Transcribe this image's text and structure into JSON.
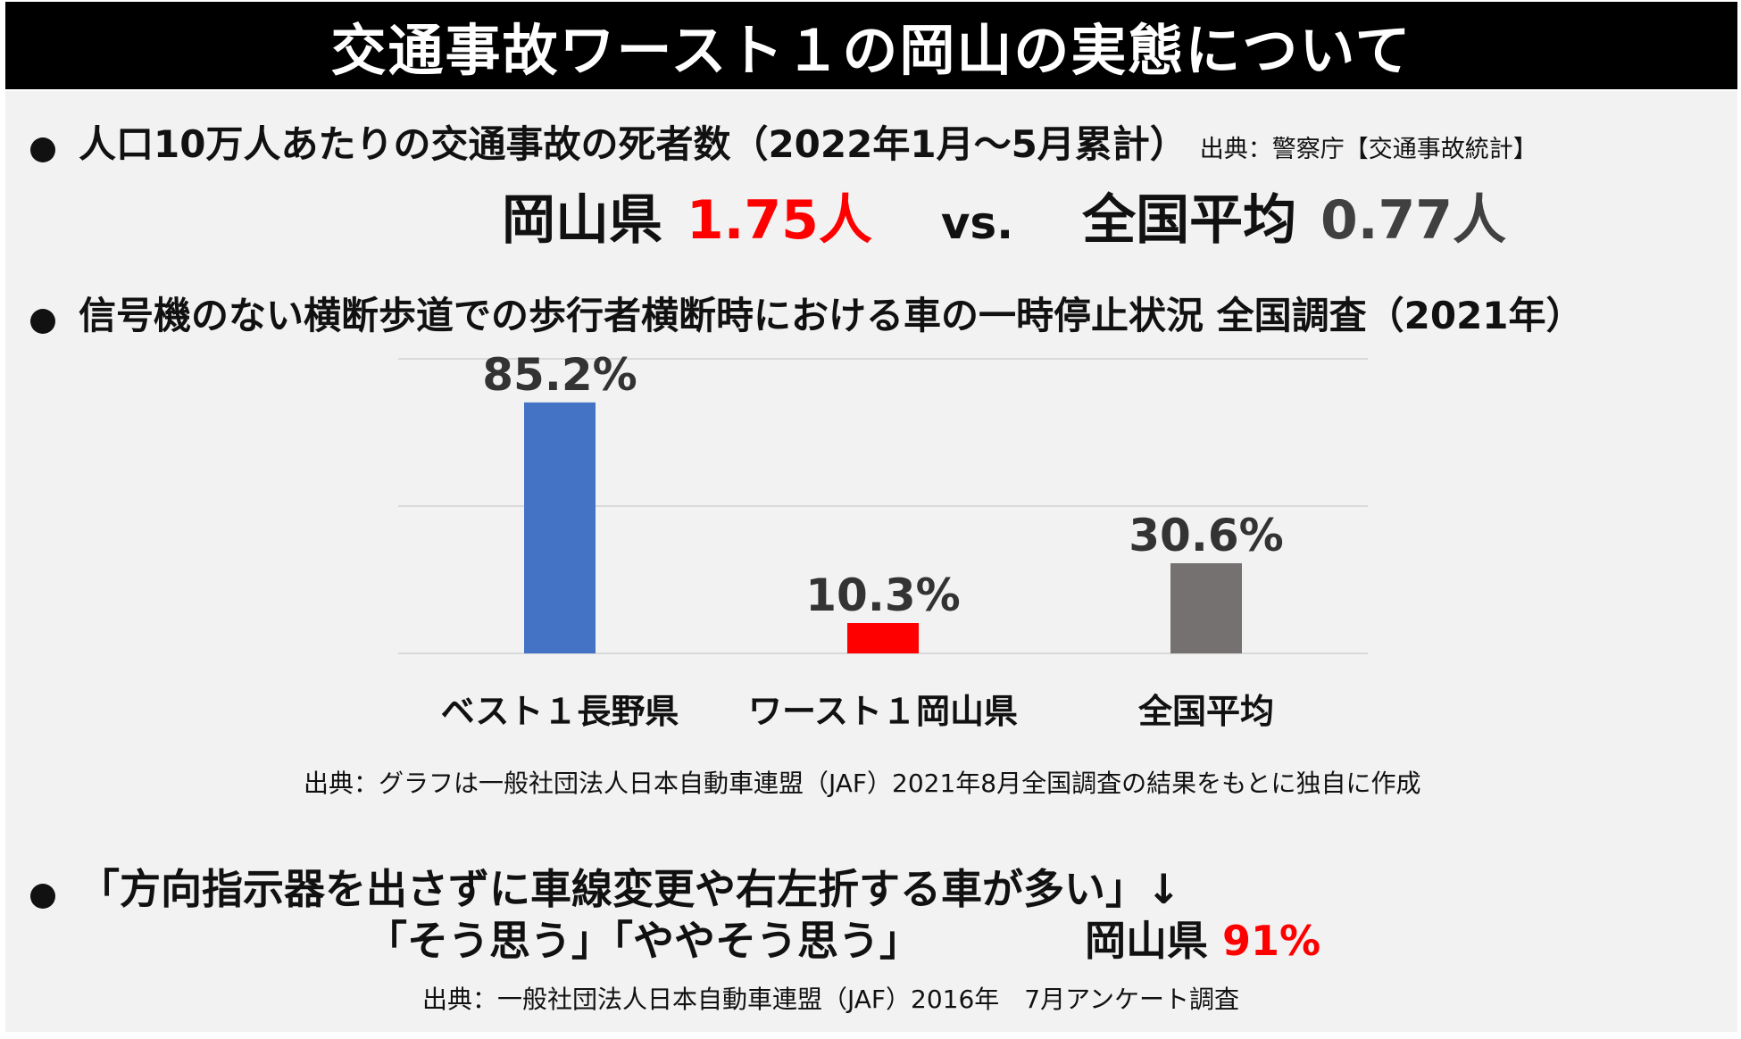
{
  "title": "交通事故ワースト１の岡山の実態について",
  "section1": {
    "heading": "人口10万人あたりの交通事故の死者数（2022年1月～5月累計）",
    "source": "出典：警察庁【交通事故統計】",
    "okayama_label": "岡山県",
    "okayama_value": "1.75人",
    "vs": "vs.",
    "national_label": "全国平均",
    "national_value": "0.77人"
  },
  "section2": {
    "heading": "信号機のない横断歩道での歩行者横断時における車の一時停止状況 全国調査（2021年）",
    "source": "出典：グラフは一般社団法人日本自動車連盟（JAF）2021年8月全国調査の結果をもとに独自に作成"
  },
  "section3": {
    "quote": "「方向指示器を出さずに車線変更や右左折する車が多い」↓",
    "answer": "「そう思う」「ややそう思う」",
    "okayama_label": "岡山県",
    "okayama_value": "91%",
    "source": "出典：一般社団法人日本自動車連盟（JAF）2016年　7月アンケート調査"
  },
  "colors": {
    "red": "#ff0000",
    "blue": "#4472c4",
    "gray": "#767171",
    "title_bg": "#000000",
    "panel_bg": "#f2f2f2"
  },
  "chart_data": {
    "type": "bar",
    "categories": [
      "ベスト１長野県",
      "ワースト１岡山県",
      "全国平均"
    ],
    "values": [
      85.2,
      10.3,
      30.6
    ],
    "labels": [
      "85.2%",
      "10.3%",
      "30.6%"
    ],
    "bar_colors": [
      "#4472c4",
      "#ff0000",
      "#767171"
    ],
    "ylim": [
      0,
      100
    ],
    "gridlines": [
      0,
      50,
      100
    ],
    "title": "",
    "xlabel": "",
    "ylabel": ""
  }
}
